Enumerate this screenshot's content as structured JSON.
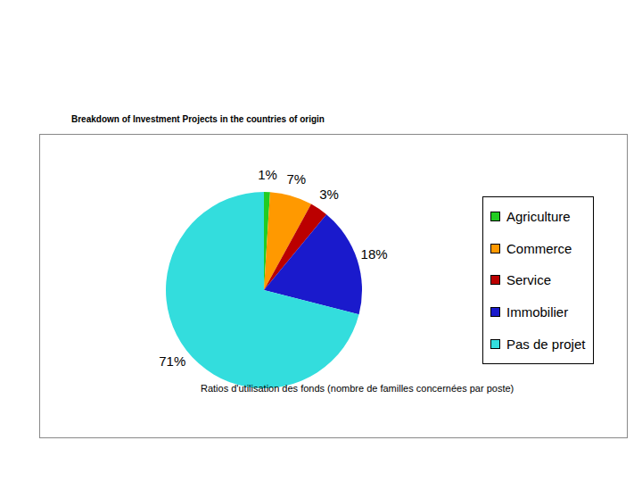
{
  "chart_data": {
    "type": "pie",
    "title": "Breakdown of Investment Projects in the countries of origin",
    "subtitle": "Ratios d'utilisation des fonds (nombre de familles concernées par poste)",
    "categories": [
      "Agriculture",
      "Commerce",
      "Service",
      "Immobilier",
      "Pas de projet"
    ],
    "values": [
      1,
      7,
      3,
      18,
      71
    ],
    "value_labels": [
      "1%",
      "7%",
      "3%",
      "18%",
      "71%"
    ],
    "colors": [
      "#22cc22",
      "#ff9900",
      "#bb0000",
      "#1a1acc",
      "#33dddd"
    ],
    "data_labels": true,
    "legend": "right"
  }
}
